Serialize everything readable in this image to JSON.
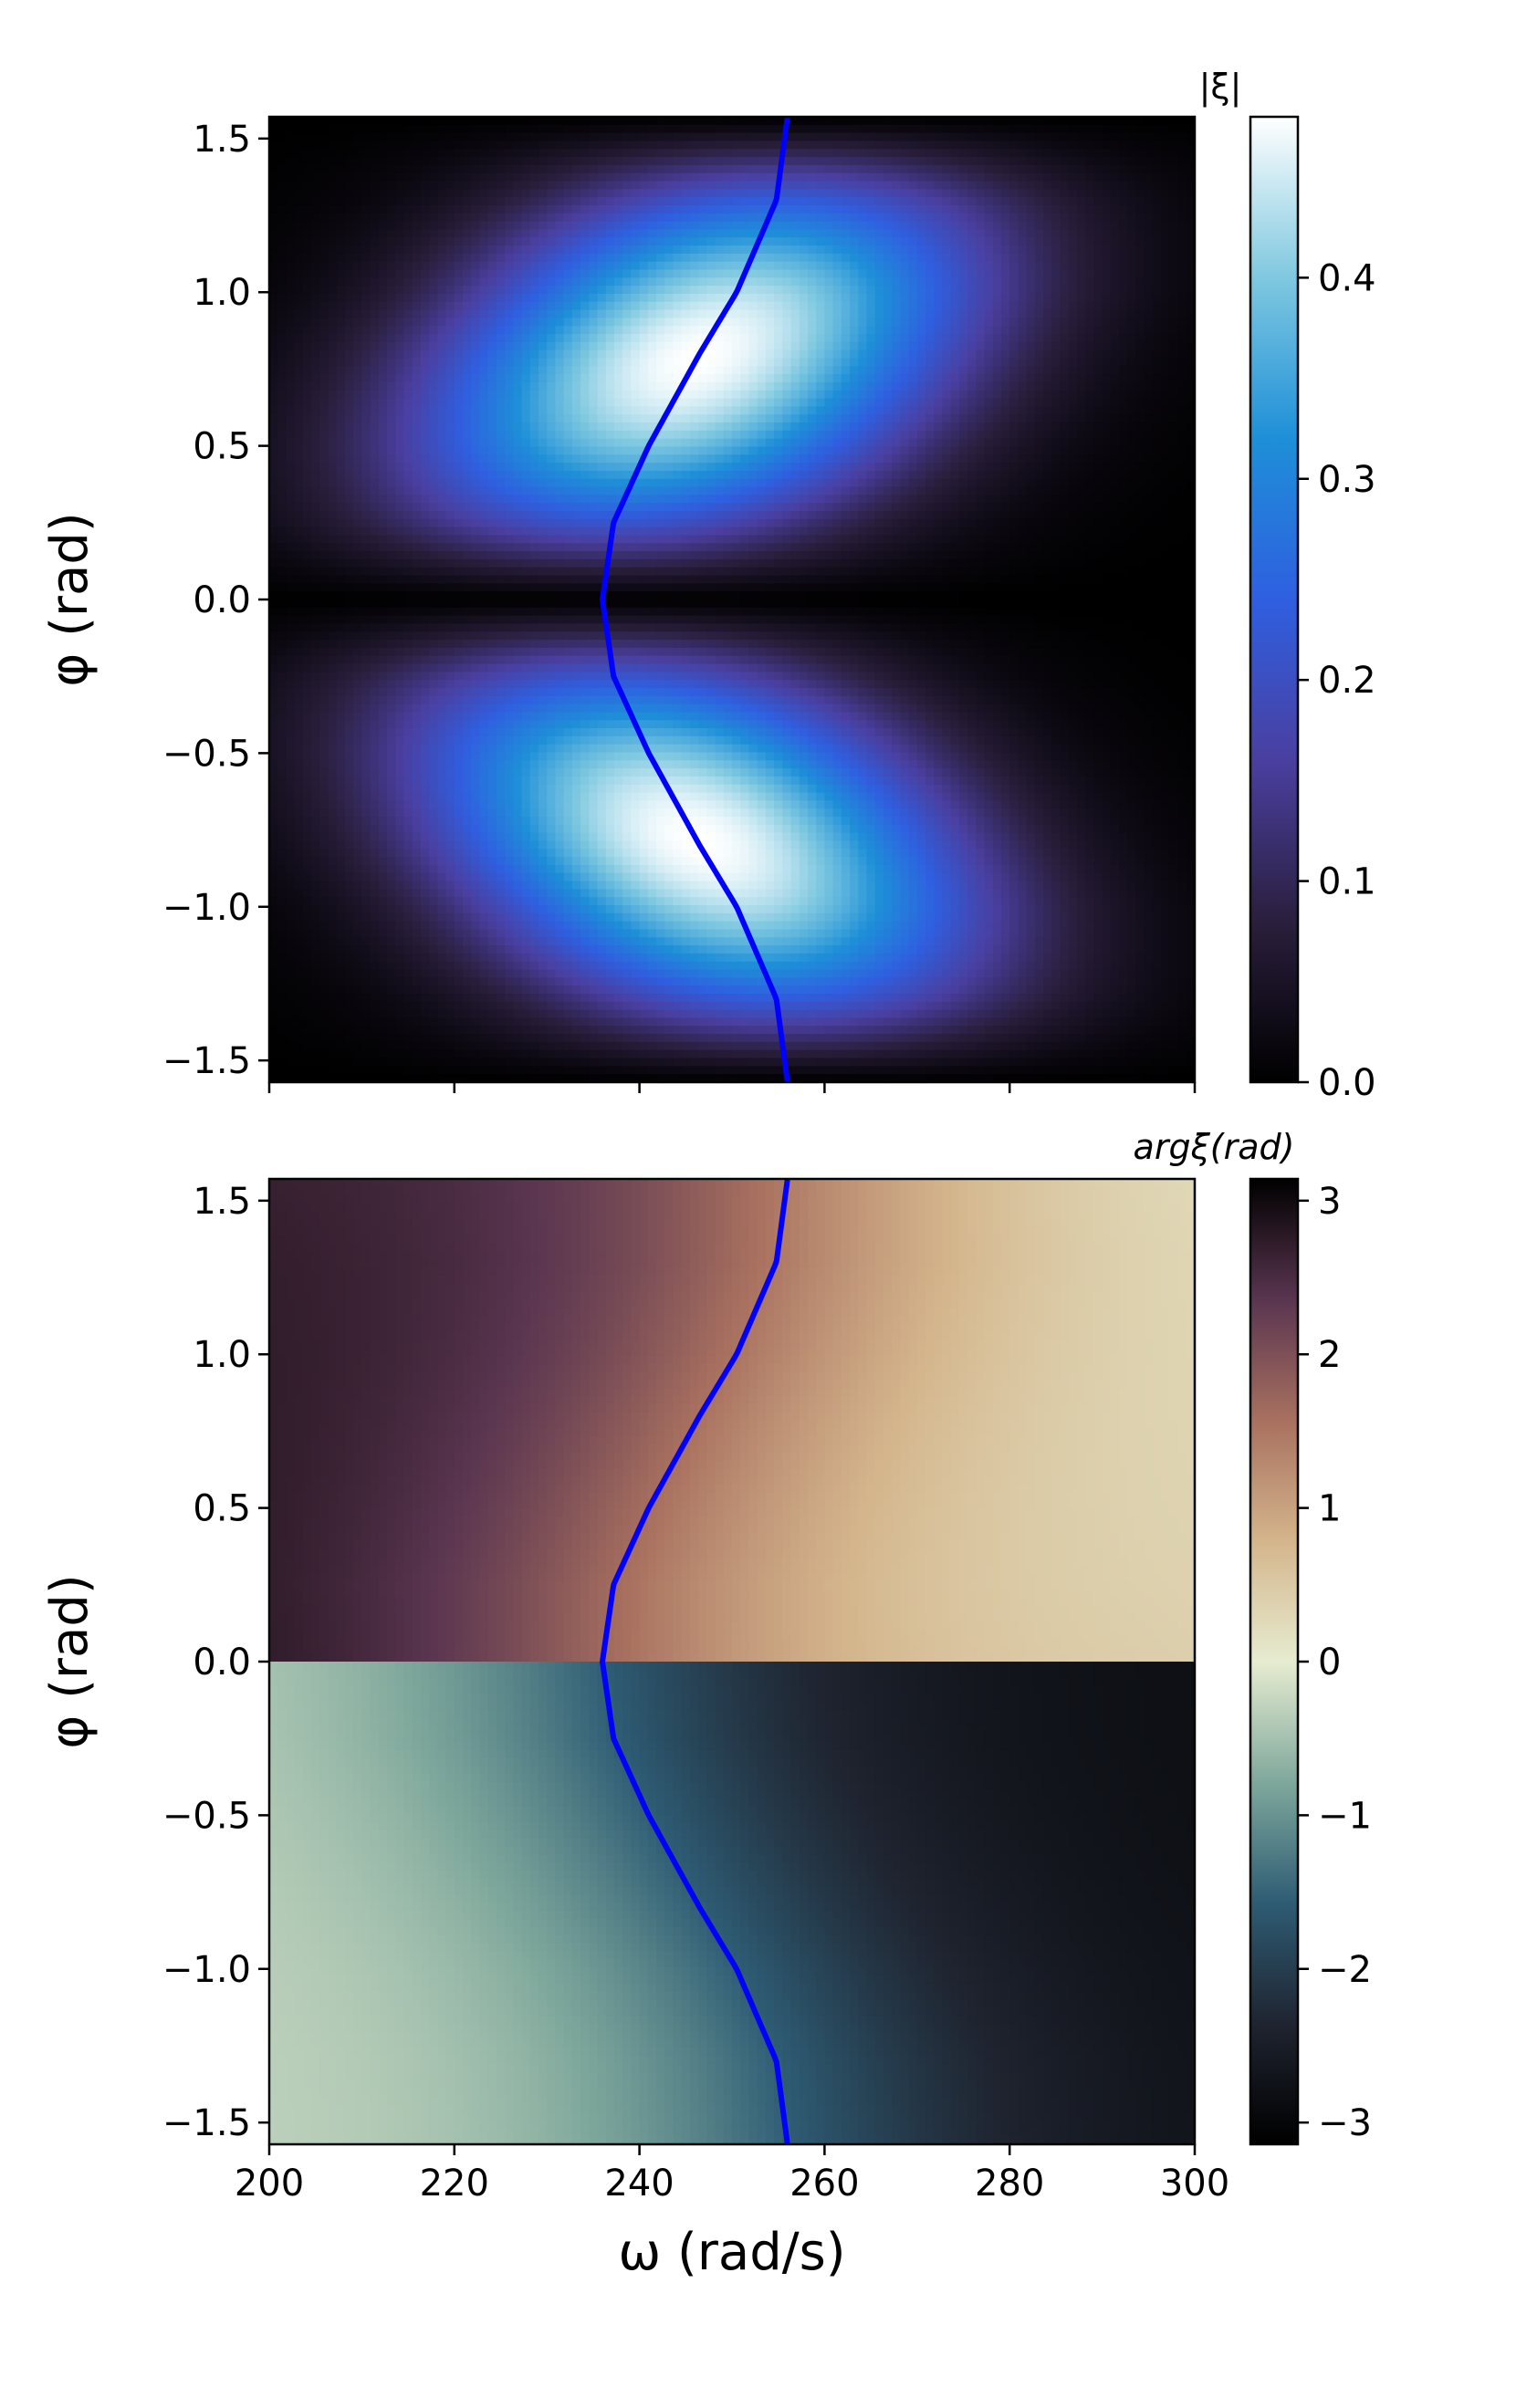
{
  "chart_data": [
    {
      "type": "heatmap",
      "panel": "top",
      "quantity": "magnitude",
      "xlabel": "",
      "ylabel": "φ (rad)",
      "xlim": [
        200,
        300
      ],
      "ylim": [
        -1.5708,
        1.5708
      ],
      "x_ticks": [
        200,
        220,
        240,
        260,
        280,
        300
      ],
      "y_ticks": [
        {
          "value": 1.5,
          "label": "1.5"
        },
        {
          "value": 1.0,
          "label": "1.0"
        },
        {
          "value": 0.5,
          "label": "0.5"
        },
        {
          "value": 0.0,
          "label": "0.0"
        },
        {
          "value": -0.5,
          "label": "−0.5"
        },
        {
          "value": -1.0,
          "label": "−1.0"
        },
        {
          "value": -1.5,
          "label": "−1.5"
        }
      ],
      "colorbar": {
        "title": "|ξ|",
        "range": [
          0.0,
          0.48
        ],
        "ticks": [
          {
            "value": 0.0,
            "label": "0.0"
          },
          {
            "value": 0.1,
            "label": "0.1"
          },
          {
            "value": 0.2,
            "label": "0.2"
          },
          {
            "value": 0.3,
            "label": "0.3"
          },
          {
            "value": 0.4,
            "label": "0.4"
          }
        ],
        "colormap": [
          "#000000",
          "#2a1f3d",
          "#4a3fa0",
          "#2f5fe0",
          "#1e8fd8",
          "#7fc8e0",
          "#ffffff"
        ]
      },
      "field_features": {
        "zero_line_phi": 0.0,
        "peak_value": 0.48,
        "peak_locations": [
          {
            "omega": 244,
            "phi": 0.8
          },
          {
            "omega": 244,
            "phi": -0.8
          }
        ]
      }
    },
    {
      "type": "heatmap",
      "panel": "bottom",
      "quantity": "phase",
      "xlabel": "ω (rad/s)",
      "ylabel": "φ (rad)",
      "xlim": [
        200,
        300
      ],
      "ylim": [
        -1.5708,
        1.5708
      ],
      "x_ticks": [
        {
          "value": 200,
          "label": "200"
        },
        {
          "value": 220,
          "label": "220"
        },
        {
          "value": 240,
          "label": "240"
        },
        {
          "value": 260,
          "label": "260"
        },
        {
          "value": 280,
          "label": "280"
        },
        {
          "value": 300,
          "label": "300"
        }
      ],
      "y_ticks": [
        {
          "value": 1.5,
          "label": "1.5"
        },
        {
          "value": 1.0,
          "label": "1.0"
        },
        {
          "value": 0.5,
          "label": "0.5"
        },
        {
          "value": 0.0,
          "label": "0.0"
        },
        {
          "value": -0.5,
          "label": "−0.5"
        },
        {
          "value": -1.0,
          "label": "−1.0"
        },
        {
          "value": -1.5,
          "label": "−1.5"
        }
      ],
      "colorbar": {
        "title": "argξ(rad)",
        "range": [
          -3.1416,
          3.1416
        ],
        "ticks": [
          {
            "value": 3,
            "label": "3"
          },
          {
            "value": 2,
            "label": "2"
          },
          {
            "value": 1,
            "label": "1"
          },
          {
            "value": 0,
            "label": "0"
          },
          {
            "value": -1,
            "label": "−1"
          },
          {
            "value": -2,
            "label": "−2"
          },
          {
            "value": -3,
            "label": "−3"
          }
        ],
        "colormap": [
          "#000000",
          "#1f2430",
          "#2e5c74",
          "#7fa89c",
          "#e6ecd0",
          "#d4b58c",
          "#a8705f",
          "#5a3550",
          "#000000"
        ]
      }
    }
  ],
  "overlay_curve": {
    "color": "#0000ff",
    "points": [
      {
        "phi": -1.5708,
        "omega": 256.0
      },
      {
        "phi": -1.3,
        "omega": 254.8
      },
      {
        "phi": -1.0,
        "omega": 250.5
      },
      {
        "phi": -0.8,
        "omega": 246.5
      },
      {
        "phi": -0.5,
        "omega": 241.0
      },
      {
        "phi": -0.25,
        "omega": 237.2
      },
      {
        "phi": 0.0,
        "omega": 236.0
      },
      {
        "phi": 0.25,
        "omega": 237.2
      },
      {
        "phi": 0.5,
        "omega": 241.0
      },
      {
        "phi": 0.8,
        "omega": 246.5
      },
      {
        "phi": 1.0,
        "omega": 250.5
      },
      {
        "phi": 1.3,
        "omega": 254.8
      },
      {
        "phi": 1.5708,
        "omega": 256.0
      }
    ]
  }
}
